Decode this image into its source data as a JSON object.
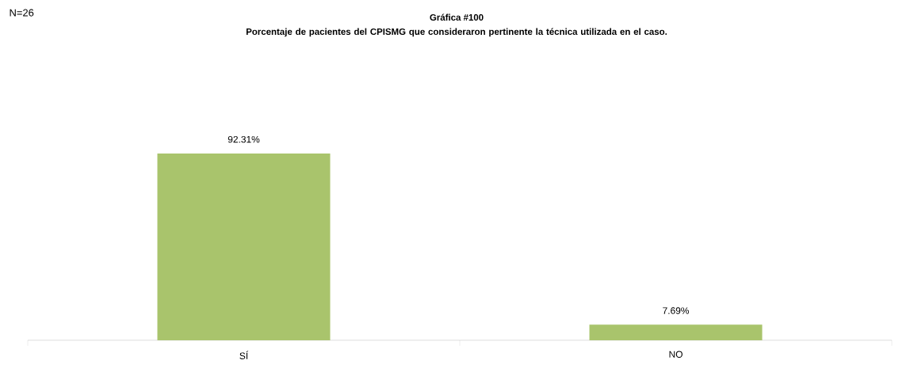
{
  "chart_data": {
    "type": "bar",
    "title": "Gráfica #100",
    "subtitle": "Porcentaje de pacientes del CPISMG que consideraron pertinente la técnica utilizada en el caso.",
    "categories": [
      "SÍ",
      "NO"
    ],
    "values": [
      92.31,
      7.69
    ],
    "value_labels": [
      "92.31%",
      "7.69%"
    ],
    "color": "#a9c46c",
    "annotations": [
      "N=26"
    ]
  }
}
